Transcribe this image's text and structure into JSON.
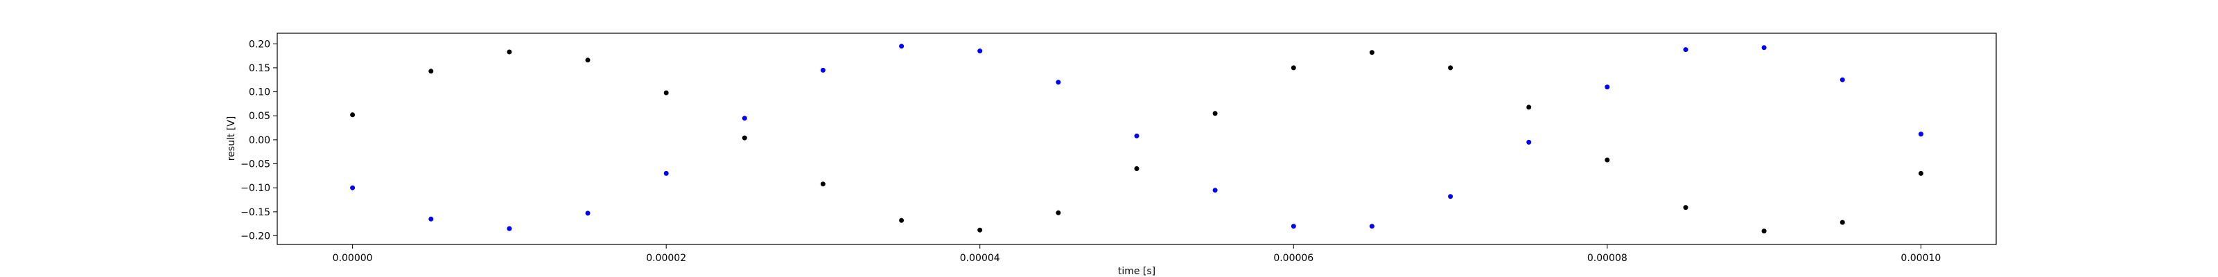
{
  "chart_data": {
    "type": "scatter",
    "title": "",
    "xlabel": "time [s]",
    "ylabel": "result [V]",
    "xlim": [
      -4.8e-06,
      0.0001048
    ],
    "ylim": [
      -0.218,
      0.222
    ],
    "x_ticks": [
      0,
      2e-05,
      4e-05,
      6e-05,
      8e-05,
      0.0001
    ],
    "x_tick_labels": [
      "0.00000",
      "0.00002",
      "0.00004",
      "0.00006",
      "0.00008",
      "0.00010"
    ],
    "y_ticks": [
      0.2,
      0.15,
      0.1,
      0.05,
      0.0,
      -0.05,
      -0.1,
      -0.15,
      -0.2
    ],
    "y_tick_labels": [
      "0.20",
      "0.15",
      "0.10",
      "0.05",
      "0.00",
      "−0.05",
      "−0.10",
      "−0.15",
      "−0.20"
    ],
    "grid": false,
    "legend": false,
    "series": [
      {
        "color": "#000000",
        "x": [
          0,
          5e-06,
          1e-05,
          1.5e-05,
          2e-05,
          2.5e-05,
          3e-05,
          3.5e-05,
          4e-05,
          4.5e-05,
          5e-05,
          5.5e-05,
          6e-05,
          6.5e-05,
          7e-05,
          7.5e-05,
          8e-05,
          8.5e-05,
          9e-05,
          9.5e-05,
          0.0001
        ],
        "values": [
          0.052,
          0.143,
          0.183,
          0.166,
          0.098,
          0.004,
          -0.092,
          -0.168,
          -0.188,
          -0.152,
          -0.06,
          0.055,
          0.15,
          0.182,
          0.15,
          0.068,
          -0.042,
          -0.141,
          -0.19,
          -0.172,
          -0.07
        ]
      },
      {
        "color": "#0000ff",
        "x": [
          0,
          5e-06,
          1e-05,
          1.5e-05,
          2e-05,
          2.5e-05,
          3e-05,
          3.5e-05,
          4e-05,
          4.5e-05,
          5e-05,
          5.5e-05,
          6e-05,
          6.5e-05,
          7e-05,
          7.5e-05,
          8e-05,
          8.5e-05,
          9e-05,
          9.5e-05,
          0.0001
        ],
        "values": [
          -0.1,
          -0.165,
          -0.185,
          -0.153,
          -0.07,
          0.045,
          0.145,
          0.195,
          0.185,
          0.12,
          0.008,
          -0.105,
          -0.18,
          -0.18,
          -0.118,
          -0.005,
          0.11,
          0.188,
          0.192,
          0.125,
          0.012
        ]
      }
    ]
  }
}
